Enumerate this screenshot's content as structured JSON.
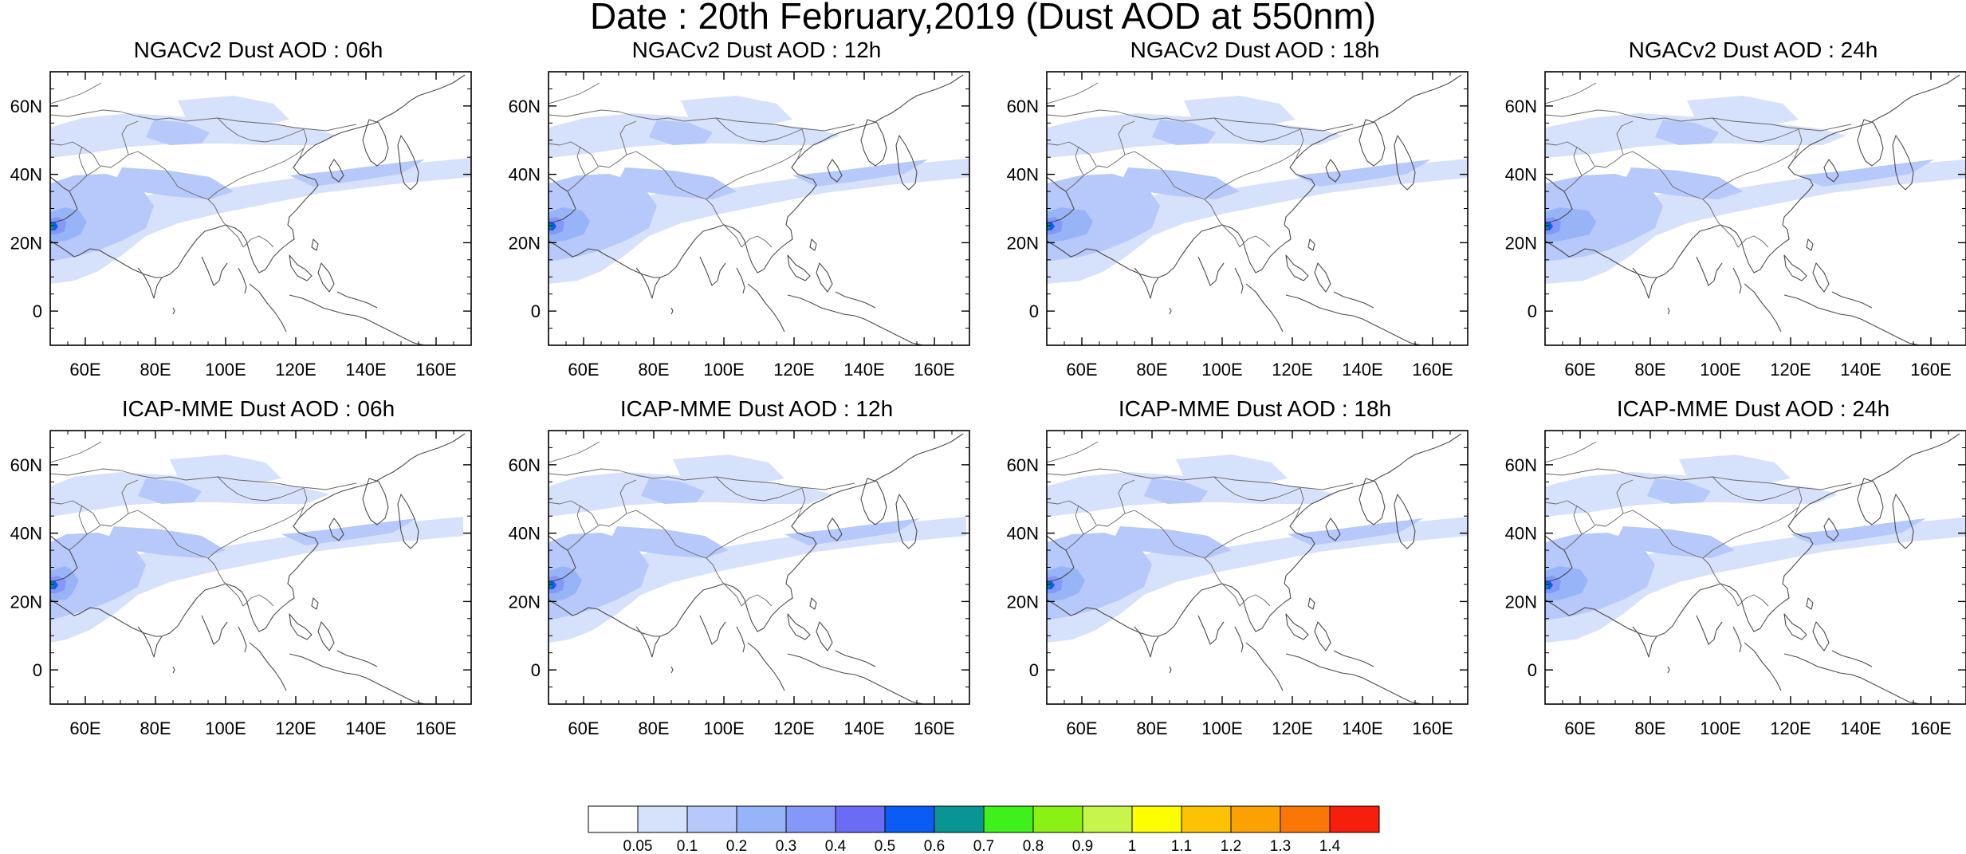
{
  "title": "Date : 20th February,2019 (Dust AOD at 550nm)",
  "panels": [
    {
      "title": "NGACv2 Dust AOD : 06h",
      "model": "NGACv2",
      "forecast_hour": "06h"
    },
    {
      "title": "NGACv2 Dust AOD : 12h",
      "model": "NGACv2",
      "forecast_hour": "12h"
    },
    {
      "title": "NGACv2 Dust AOD : 18h",
      "model": "NGACv2",
      "forecast_hour": "18h"
    },
    {
      "title": "NGACv2 Dust AOD : 24h",
      "model": "NGACv2",
      "forecast_hour": "24h"
    },
    {
      "title": "ICAP-MME Dust AOD : 06h",
      "model": "ICAP-MME",
      "forecast_hour": "06h"
    },
    {
      "title": "ICAP-MME Dust AOD : 12h",
      "model": "ICAP-MME",
      "forecast_hour": "12h"
    },
    {
      "title": "ICAP-MME Dust AOD : 18h",
      "model": "ICAP-MME",
      "forecast_hour": "18h"
    },
    {
      "title": "ICAP-MME Dust AOD : 24h",
      "model": "ICAP-MME",
      "forecast_hour": "24h"
    }
  ],
  "map": {
    "lon_range": [
      50,
      170
    ],
    "lat_range": [
      -10,
      70
    ],
    "lon_ticks": [
      "60E",
      "80E",
      "100E",
      "120E",
      "140E",
      "160E"
    ],
    "lon_tick_values": [
      60,
      80,
      100,
      120,
      140,
      160
    ],
    "lat_ticks": [
      "60N",
      "40N",
      "20N",
      "0"
    ],
    "lat_tick_values": [
      60,
      40,
      20,
      0
    ]
  },
  "colorbar": {
    "colors": [
      "#ffffff",
      "#d6e1fb",
      "#b7c8fa",
      "#98b4f9",
      "#8598f8",
      "#6a6cf5",
      "#0a5cf4",
      "#079693",
      "#3ef11a",
      "#8bf115",
      "#c8f54a",
      "#fcfe01",
      "#fbc301",
      "#fba102",
      "#fa7706",
      "#f61e0c"
    ],
    "labels": [
      "0.05",
      "0.1",
      "0.2",
      "0.3",
      "0.4",
      "0.5",
      "0.6",
      "0.7",
      "0.8",
      "0.9",
      "1",
      "1.1",
      "1.2",
      "1.3",
      "1.4"
    ]
  }
}
